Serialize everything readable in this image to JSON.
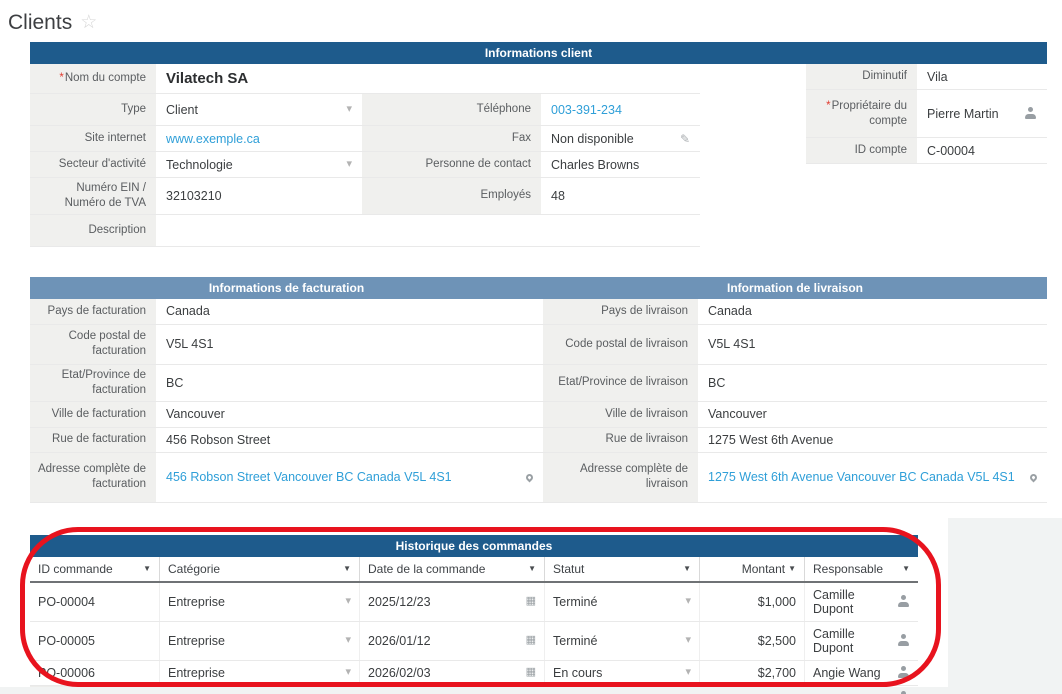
{
  "marks": {
    "required": "*"
  },
  "icons": {
    "star": "☆",
    "sort": "▼",
    "dropdown": "▾",
    "pencil": "✎",
    "calendar": "▦"
  },
  "page": {
    "title": "Clients"
  },
  "client_info": {
    "header": "Informations client",
    "fields": {
      "account_name": {
        "label": "Nom du compte",
        "value": "Vilatech SA"
      },
      "type": {
        "label": "Type",
        "value": "Client"
      },
      "phone": {
        "label": "Téléphone",
        "value": "003-391-234"
      },
      "website": {
        "label": "Site internet",
        "value": "www.exemple.ca"
      },
      "fax": {
        "label": "Fax",
        "value": "Non disponible"
      },
      "industry": {
        "label": "Secteur d'activité",
        "value": "Technologie"
      },
      "contact_person": {
        "label": "Personne de contact",
        "value": "Charles Browns"
      },
      "ein": {
        "label": "Numéro EIN / Numéro de TVA",
        "value": "32103210"
      },
      "employees": {
        "label": "Employés",
        "value": "48"
      },
      "description": {
        "label": "Description",
        "value": ""
      },
      "short_name": {
        "label": "Diminutif",
        "value": "Vila"
      },
      "owner": {
        "label": "Propriétaire du compte",
        "value": "Pierre Martin"
      },
      "account_id": {
        "label": "ID compte",
        "value": "C-00004"
      }
    }
  },
  "billing": {
    "header": "Informations de facturation",
    "rows": [
      {
        "label": "Pays de facturation",
        "value": "Canada"
      },
      {
        "label": "Code postal de facturation",
        "value": "V5L 4S1"
      },
      {
        "label": "Etat/Province de facturation",
        "value": "BC"
      },
      {
        "label": "Ville de facturation",
        "value": "Vancouver"
      },
      {
        "label": "Rue de facturation",
        "value": "456 Robson Street"
      },
      {
        "label": "Adresse complète de facturation",
        "value": "456 Robson Street Vancouver BC Canada V5L 4S1"
      }
    ]
  },
  "shipping": {
    "header": "Information de livraison",
    "rows": [
      {
        "label": "Pays de livraison",
        "value": "Canada"
      },
      {
        "label": "Code postal de livraison",
        "value": "V5L 4S1"
      },
      {
        "label": "Etat/Province de livraison",
        "value": "BC"
      },
      {
        "label": "Ville de livraison",
        "value": "Vancouver"
      },
      {
        "label": "Rue de livraison",
        "value": "1275 West 6th Avenue"
      },
      {
        "label": "Adresse complète de livraison",
        "value": "1275 West 6th Avenue Vancouver BC Canada V5L 4S1"
      }
    ]
  },
  "orders": {
    "header": "Historique des commandes",
    "columns": [
      "ID commande",
      "Catégorie",
      "Date de la commande",
      "Statut",
      "Montant",
      "Responsable"
    ],
    "rows": [
      {
        "id": "PO-00004",
        "category": "Entreprise",
        "date": "2025/12/23",
        "status": "Terminé",
        "amount": "$1,000",
        "owner": "Camille Dupont"
      },
      {
        "id": "PO-00005",
        "category": "Entreprise",
        "date": "2026/01/12",
        "status": "Terminé",
        "amount": "$2,500",
        "owner": "Camille Dupont"
      },
      {
        "id": "PO-00006",
        "category": "Entreprise",
        "date": "2026/02/03",
        "status": "En cours",
        "amount": "$2,700",
        "owner": "Angie Wang"
      }
    ]
  },
  "colors": {
    "header_dark": "#1e5b8c",
    "header_light": "#6e93b7",
    "link": "#2f9fd8",
    "annotation": "#e8131e"
  }
}
